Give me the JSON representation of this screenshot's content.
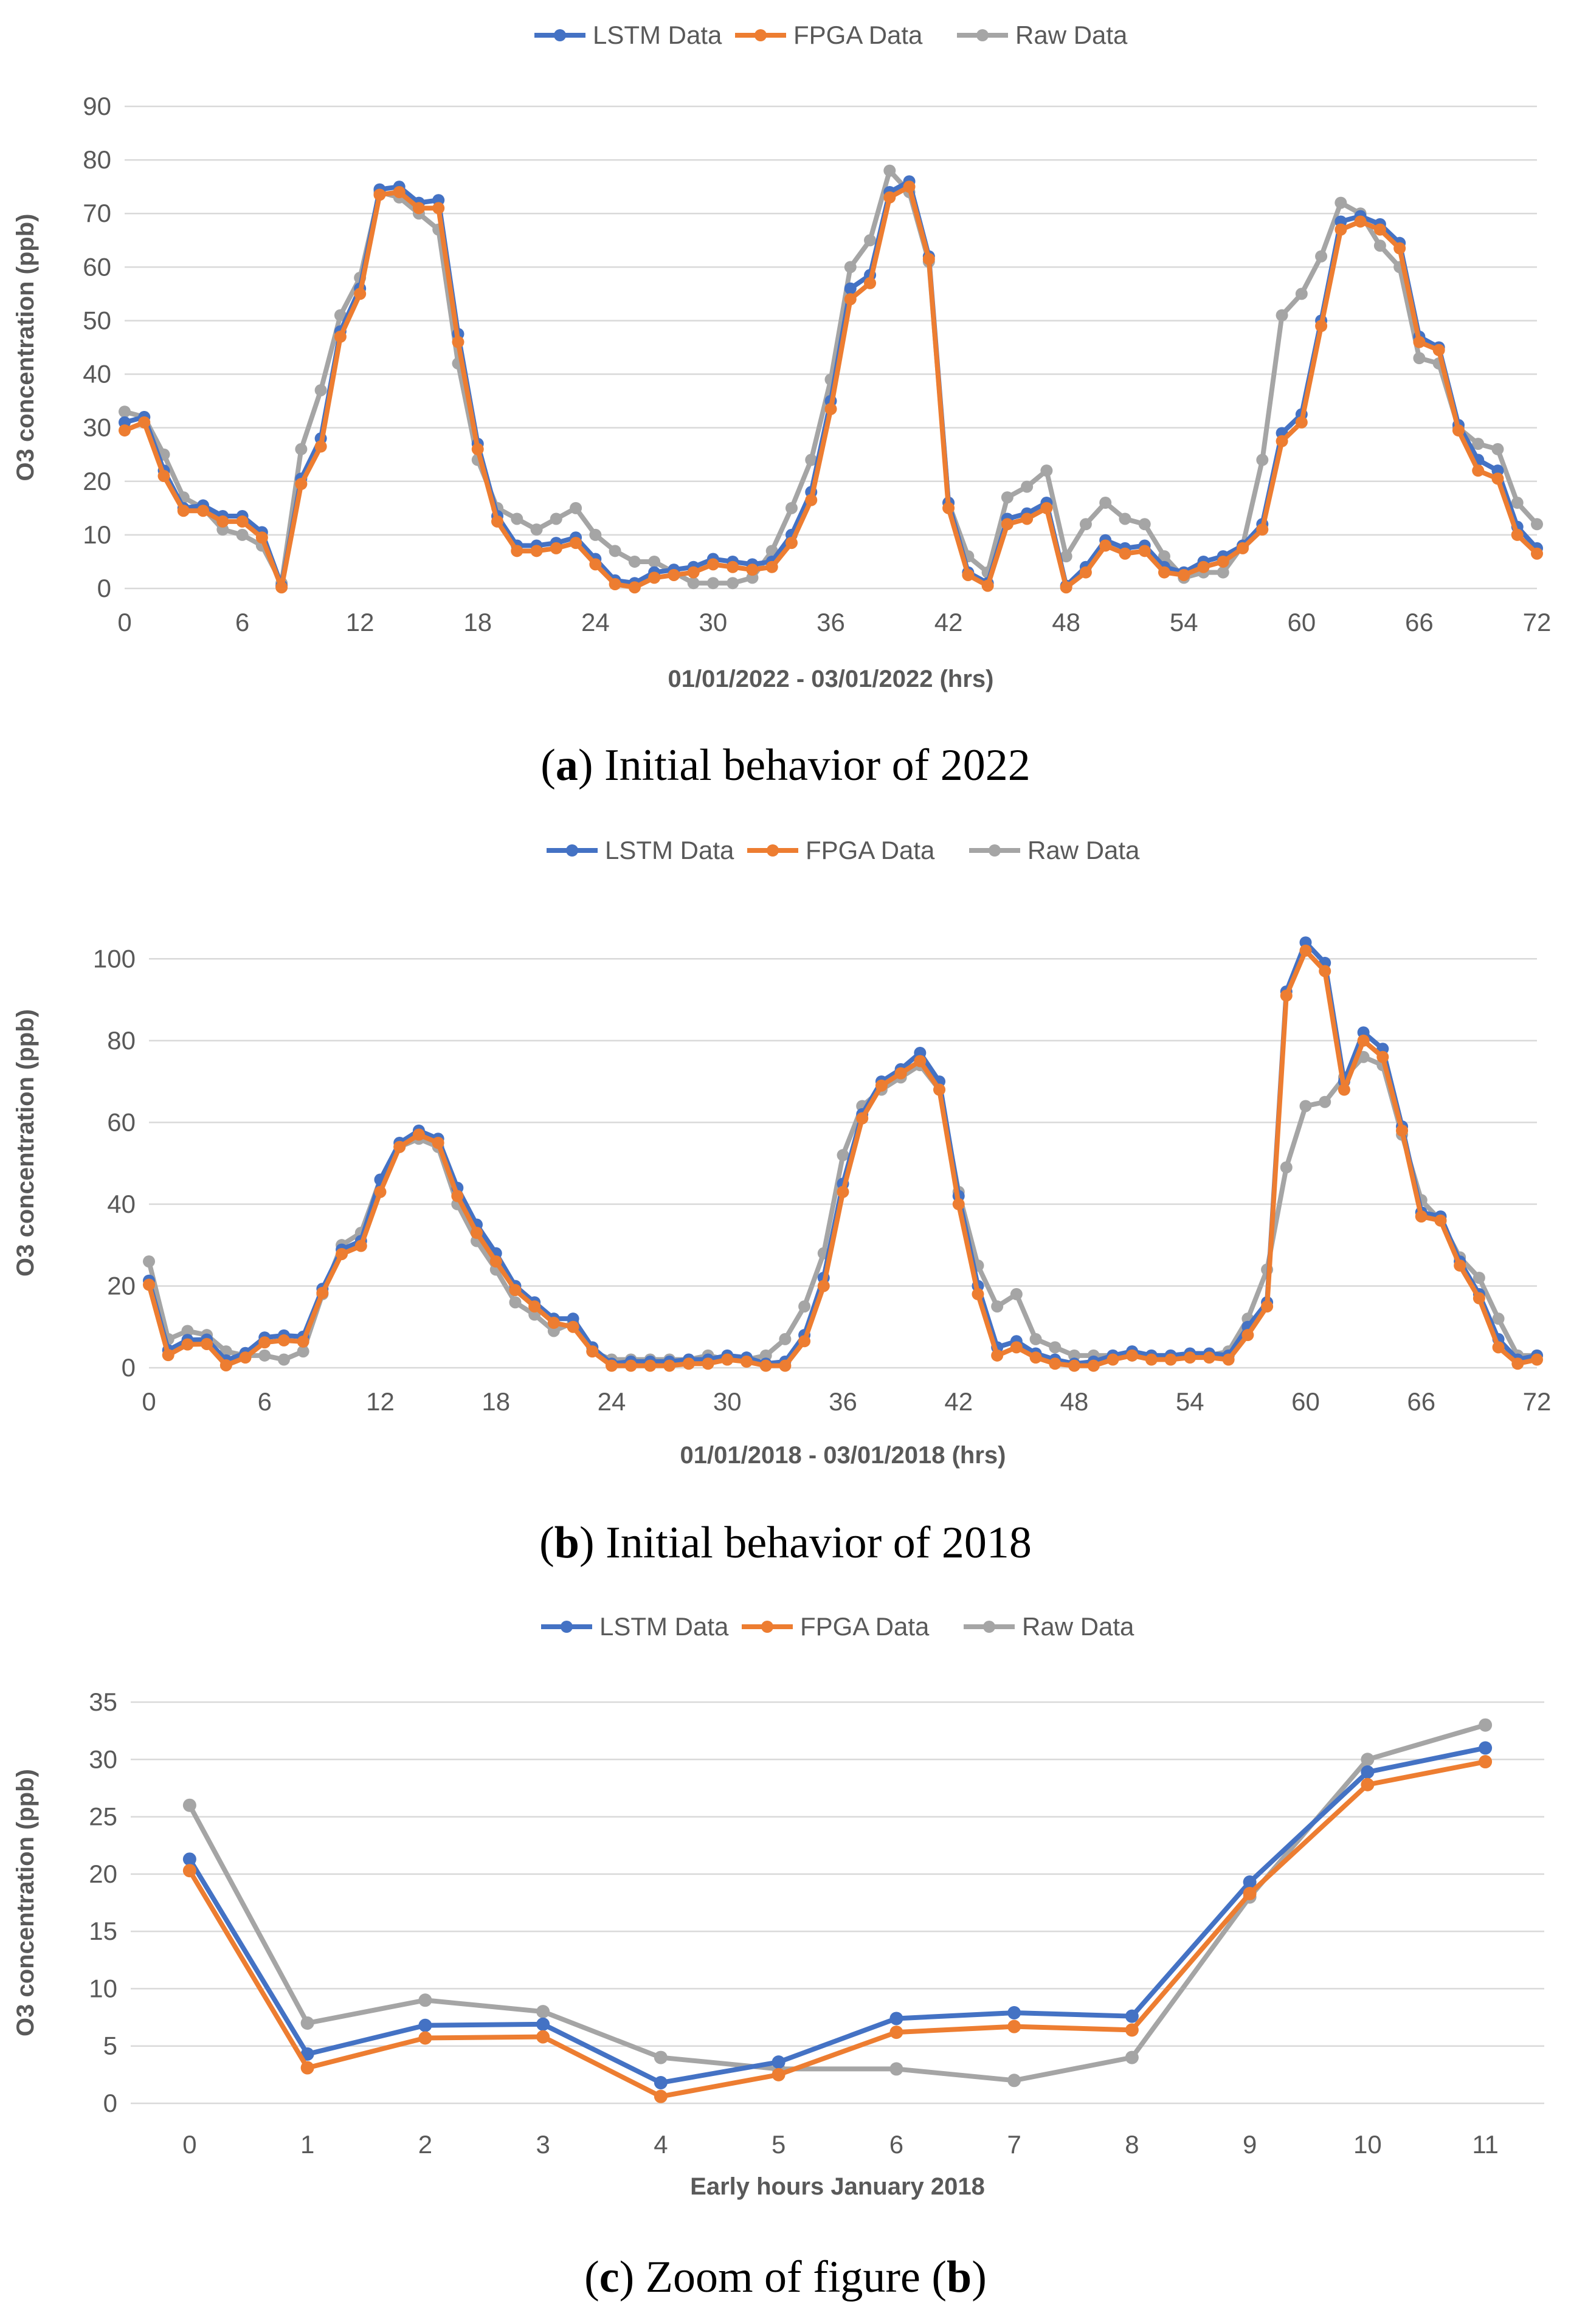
{
  "chart_data": [
    {
      "type": "line",
      "title": "",
      "caption": {
        "prefix": "(",
        "bold": "a",
        "suffix": ") Initial behavior of 2022"
      },
      "xlabel": "01/01/2022 - 03/01/2022 (hrs)",
      "ylabel": "O3 concentration (ppb)",
      "xlim": [
        0,
        72
      ],
      "ylim": [
        0,
        90
      ],
      "xticks": [
        0,
        6,
        12,
        18,
        24,
        30,
        36,
        42,
        48,
        54,
        60,
        66,
        72
      ],
      "yticks": [
        0,
        10,
        20,
        30,
        40,
        50,
        60,
        70,
        80,
        90
      ],
      "legend_position": "top-center",
      "grid": true,
      "series": [
        {
          "name": "LSTM Data",
          "color": "#4472C4",
          "values": [
            31,
            32,
            22,
            15,
            15.5,
            13.5,
            13.5,
            10.5,
            0.5,
            20.5,
            28,
            48,
            56,
            74.5,
            75,
            72,
            72.5,
            47.5,
            27,
            13.5,
            8,
            8,
            8.5,
            9.5,
            5.5,
            1.5,
            1,
            3,
            3.5,
            4,
            5.5,
            5,
            4.5,
            5,
            10,
            18,
            35,
            56,
            58.5,
            74,
            76,
            62,
            16,
            3,
            1,
            13,
            14,
            16,
            0.5,
            4,
            9,
            7.5,
            8,
            4,
            3,
            5,
            6,
            8,
            12,
            29,
            32.5,
            50,
            68.5,
            69.5,
            68,
            64.5,
            47,
            45,
            30.5,
            24,
            22,
            11.5,
            7.5
          ]
        },
        {
          "name": "FPGA Data",
          "color": "#ED7D31",
          "values": [
            29.5,
            31,
            21,
            14.5,
            14.5,
            12.5,
            12.5,
            9.5,
            0.2,
            19.5,
            26.5,
            47,
            55,
            73.5,
            74,
            71,
            71,
            46,
            26,
            12.5,
            7,
            7,
            7.5,
            8.5,
            4.5,
            0.8,
            0.2,
            2,
            2.5,
            3,
            4.5,
            4,
            3.5,
            4,
            8.5,
            16.5,
            33.5,
            54,
            57,
            73,
            75,
            61.5,
            15,
            2.5,
            0.5,
            12,
            13,
            15,
            0.2,
            3,
            8,
            6.5,
            7,
            3,
            2.5,
            4,
            5,
            7.5,
            11,
            27.5,
            31,
            49,
            67,
            68.5,
            67,
            63.5,
            46,
            44.5,
            29.5,
            22,
            20.5,
            10,
            6.5
          ]
        },
        {
          "name": "Raw Data",
          "color": "#A5A5A5",
          "values": [
            33,
            32,
            25,
            17,
            15,
            11,
            10,
            8,
            1,
            26,
            37,
            51,
            58,
            74,
            73,
            70,
            67,
            42,
            24,
            15,
            13,
            11,
            13,
            15,
            10,
            7,
            5,
            5,
            3,
            1,
            1,
            1,
            2,
            7,
            15,
            24,
            39,
            60,
            65,
            78,
            74,
            61,
            16,
            6,
            3,
            17,
            19,
            22,
            6,
            12,
            16,
            13,
            12,
            6,
            2,
            3,
            3,
            8,
            24,
            51,
            55,
            62,
            72,
            70,
            64,
            60,
            43,
            42,
            30,
            27,
            26,
            16,
            12
          ]
        }
      ]
    },
    {
      "type": "line",
      "title": "",
      "caption": {
        "prefix": "(",
        "bold": "b",
        "suffix": ") Initial behavior of 2018"
      },
      "xlabel": "01/01/2018 - 03/01/2018 (hrs)",
      "ylabel": "O3 concentration (ppb)",
      "xlim": [
        0,
        72
      ],
      "ylim": [
        0,
        110
      ],
      "xticks": [
        0,
        6,
        12,
        18,
        24,
        30,
        36,
        42,
        48,
        54,
        60,
        66,
        72
      ],
      "yticks": [
        0,
        20,
        40,
        60,
        80,
        100
      ],
      "legend_position": "top-center",
      "grid": true,
      "series": [
        {
          "name": "LSTM Data",
          "color": "#4472C4",
          "values": [
            21.3,
            4.3,
            6.8,
            6.9,
            1.8,
            3.6,
            7.4,
            7.9,
            7.6,
            19.3,
            28.9,
            31,
            46,
            55,
            58,
            56,
            44,
            35,
            28,
            20,
            16,
            12,
            12,
            5,
            1,
            1.5,
            1.5,
            1.5,
            2,
            2,
            3,
            2.5,
            1,
            1.5,
            8,
            22,
            45,
            62,
            70,
            73,
            77,
            70,
            42,
            20,
            5,
            6.5,
            3.5,
            2,
            1,
            1.5,
            3,
            4,
            3,
            3,
            3.5,
            3.5,
            3,
            10,
            16,
            92,
            104,
            99,
            70,
            82,
            78,
            59,
            38,
            37,
            26,
            18,
            7,
            2,
            3
          ]
        },
        {
          "name": "FPGA Data",
          "color": "#ED7D31",
          "values": [
            20.3,
            3.1,
            5.7,
            5.8,
            0.6,
            2.5,
            6.2,
            6.7,
            6.4,
            18.3,
            27.8,
            29.8,
            43,
            54,
            57,
            55,
            42,
            33,
            26,
            19,
            15,
            11,
            10,
            4,
            0.5,
            0.5,
            0.5,
            0.5,
            1,
            1,
            2,
            1.5,
            0.5,
            0.5,
            6.5,
            20,
            43,
            61,
            69,
            72,
            75,
            68,
            40,
            18,
            3,
            5,
            2.5,
            1,
            0.5,
            0.5,
            2,
            3,
            2,
            2,
            2.5,
            2.5,
            2,
            8,
            15,
            91,
            102,
            97,
            68,
            80,
            76,
            58,
            37,
            36,
            25,
            17,
            5,
            1,
            2
          ]
        },
        {
          "name": "Raw Data",
          "color": "#A5A5A5",
          "values": [
            26,
            7,
            9,
            8,
            4,
            3,
            3,
            2,
            4,
            18,
            30,
            33,
            46,
            54,
            56,
            54,
            40,
            31,
            24,
            16,
            13,
            9,
            11,
            4,
            2,
            2,
            2,
            2,
            2,
            3,
            2,
            2,
            3,
            7,
            15,
            28,
            52,
            64,
            68,
            71,
            74,
            68,
            43,
            25,
            15,
            18,
            7,
            5,
            3,
            3,
            3,
            3,
            3,
            3,
            3,
            3,
            4,
            12,
            24,
            49,
            64,
            65,
            71,
            76,
            74,
            57,
            41,
            36,
            27,
            22,
            12,
            3,
            3
          ]
        }
      ]
    },
    {
      "type": "line",
      "title": "",
      "caption": {
        "prefix": "(",
        "bold": "c",
        "suffix": ") Zoom of figure (",
        "bold2": "b",
        "suffix2": ")"
      },
      "xlabel": "Early hours January 2018",
      "ylabel": "O3 concentration (ppb)",
      "categories": [
        "0",
        "1",
        "2",
        "3",
        "4",
        "5",
        "6",
        "7",
        "8",
        "9",
        "10",
        "11"
      ],
      "ylim": [
        0,
        35
      ],
      "yticks": [
        0,
        5,
        10,
        15,
        20,
        25,
        30,
        35
      ],
      "legend_position": "top-center",
      "grid": true,
      "series": [
        {
          "name": "LSTM Data",
          "color": "#4472C4",
          "values": [
            21.3,
            4.3,
            6.8,
            6.9,
            1.8,
            3.6,
            7.4,
            7.9,
            7.6,
            19.3,
            28.9,
            31.0
          ]
        },
        {
          "name": "FPGA Data",
          "color": "#ED7D31",
          "values": [
            20.3,
            3.1,
            5.7,
            5.8,
            0.6,
            2.5,
            6.2,
            6.7,
            6.4,
            18.3,
            27.8,
            29.8
          ]
        },
        {
          "name": "Raw Data",
          "color": "#A5A5A5",
          "values": [
            26,
            7,
            9,
            8,
            4,
            3,
            3,
            2,
            4,
            18,
            30,
            33
          ]
        }
      ]
    }
  ]
}
